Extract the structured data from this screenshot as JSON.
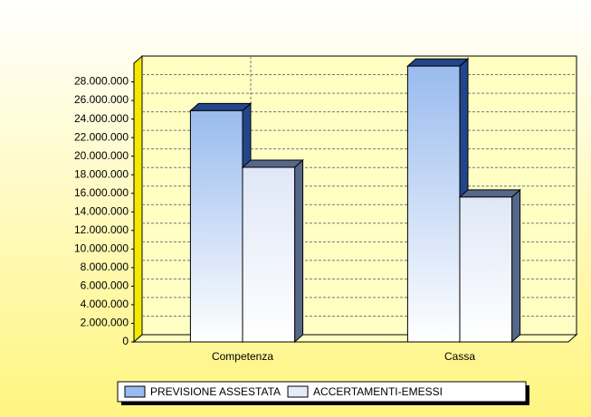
{
  "chart_data": {
    "type": "bar3d",
    "categories": [
      "Competenza",
      "Cassa"
    ],
    "series": [
      {
        "name": "PREVISIONE ASSESTATA",
        "color": "#99bbee",
        "values": [
          24900000,
          29700000
        ]
      },
      {
        "name": "ACCERTAMENTI-EMESSI",
        "color": "#e4ebf8",
        "values": [
          18800000,
          15600000
        ]
      }
    ],
    "ylim": [
      0,
      30000000
    ],
    "yticks": [
      0,
      {
        "value": 2000000,
        "label": "2.000.000"
      },
      {
        "value": 4000000,
        "label": "4.000.000"
      },
      {
        "value": 6000000,
        "label": "6.000.000"
      },
      {
        "value": 8000000,
        "label": "8.000.000"
      },
      {
        "value": 10000000,
        "label": "10.000.000"
      },
      {
        "value": 12000000,
        "label": "12.000.000"
      },
      {
        "value": 14000000,
        "label": "14.000.000"
      },
      {
        "value": 16000000,
        "label": "16.000.000"
      },
      {
        "value": 18000000,
        "label": "18.000.000"
      },
      {
        "value": 20000000,
        "label": "20.000.000"
      },
      {
        "value": 22000000,
        "label": "22.000.000"
      },
      {
        "value": 24000000,
        "label": "24.000.000"
      },
      {
        "value": 26000000,
        "label": "26.000.000"
      },
      {
        "value": 28000000,
        "label": "28.000.000"
      }
    ],
    "grid": true,
    "legend": "bottom"
  }
}
